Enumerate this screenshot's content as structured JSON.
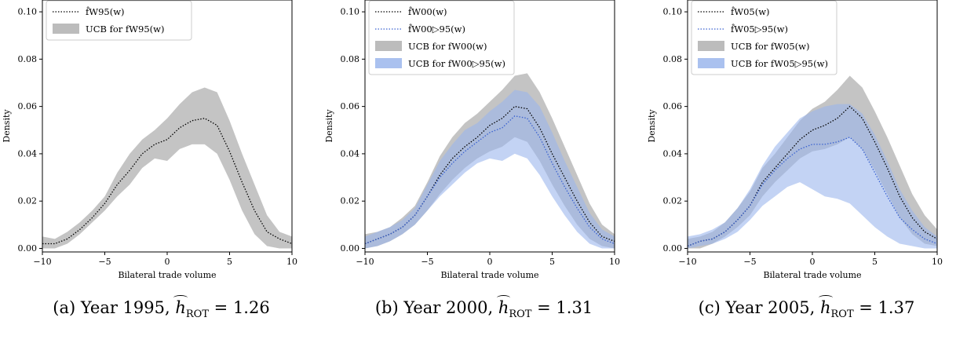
{
  "figure": {
    "panels": [
      {
        "caption": {
          "prefix": "(a) Year 1995, ",
          "h": "h",
          "sub": "ROT",
          "value": " = 1.26"
        },
        "xlabel": "Bilateral trade volume",
        "ylabel": "Density",
        "legend": [
          {
            "label": "f̂W95(w)",
            "kind": "line-black"
          },
          {
            "label": "UCB for fW95(w)",
            "kind": "patch-gray"
          }
        ]
      },
      {
        "caption": {
          "prefix": "(b) Year 2000, ",
          "h": "h",
          "sub": "ROT",
          "value": " = 1.31"
        },
        "xlabel": "Bilateral trade volume",
        "ylabel": "Density",
        "legend": [
          {
            "label": "f̂W00(w)",
            "kind": "line-black"
          },
          {
            "label": "f̂W00▷95(w)",
            "kind": "line-blue"
          },
          {
            "label": "UCB for fW00(w)",
            "kind": "patch-gray"
          },
          {
            "label": "UCB for fW00▷95(w)",
            "kind": "patch-blue"
          }
        ]
      },
      {
        "caption": {
          "prefix": "(c) Year 2005, ",
          "h": "h",
          "sub": "ROT",
          "value": " = 1.37"
        },
        "xlabel": "Bilateral trade volume",
        "ylabel": "Density",
        "legend": [
          {
            "label": "f̂W05(w)",
            "kind": "line-black"
          },
          {
            "label": "f̂W05▷95(w)",
            "kind": "line-blue"
          },
          {
            "label": "UCB for fW05(w)",
            "kind": "patch-gray"
          },
          {
            "label": "UCB for fW05▷95(w)",
            "kind": "patch-blue"
          }
        ]
      }
    ]
  },
  "colors": {
    "gray_band": "#b0b0b0",
    "blue_band": "#9bb6ec",
    "blue_line": "#3a62d0",
    "black_line": "#000000"
  },
  "chart_data": [
    {
      "type": "area",
      "xlabel": "Bilateral trade volume",
      "ylabel": "Density",
      "xlim": [
        -10,
        10
      ],
      "ylim": [
        -0.0015,
        0.105
      ],
      "xticks": [
        -10,
        -5,
        0,
        5,
        10
      ],
      "yticks": [
        0.0,
        0.02,
        0.04,
        0.06,
        0.08,
        0.1
      ],
      "ytick_labels": [
        "0.00",
        "0.02",
        "0.04",
        "0.06",
        "0.08",
        "0.10"
      ],
      "grid": false,
      "legend_position": "upper-left",
      "x": [
        -10,
        -9,
        -8,
        -7,
        -6,
        -5,
        -4,
        -3,
        -2,
        -1,
        0,
        1,
        2,
        3,
        4,
        5,
        6,
        7,
        8,
        9,
        10
      ],
      "series": [
        {
          "label": "f̂W95(w)",
          "kind": "line",
          "color": "#000000",
          "values": [
            0.002,
            0.002,
            0.004,
            0.008,
            0.013,
            0.019,
            0.027,
            0.033,
            0.04,
            0.044,
            0.046,
            0.051,
            0.054,
            0.055,
            0.052,
            0.041,
            0.028,
            0.016,
            0.007,
            0.004,
            0.002
          ]
        }
      ],
      "bands": [
        {
          "label": "UCB for fW95(w)",
          "color": "#b0b0b0",
          "lower": [
            0.0,
            0.0,
            0.002,
            0.006,
            0.011,
            0.016,
            0.022,
            0.027,
            0.034,
            0.038,
            0.037,
            0.042,
            0.044,
            0.044,
            0.04,
            0.029,
            0.016,
            0.006,
            0.001,
            0.0,
            0.0
          ],
          "upper": [
            0.005,
            0.004,
            0.007,
            0.011,
            0.016,
            0.022,
            0.032,
            0.04,
            0.046,
            0.05,
            0.055,
            0.061,
            0.066,
            0.068,
            0.066,
            0.054,
            0.04,
            0.027,
            0.014,
            0.007,
            0.005
          ]
        }
      ]
    },
    {
      "type": "area",
      "xlabel": "Bilateral trade volume",
      "ylabel": "Density",
      "xlim": [
        -10,
        10
      ],
      "ylim": [
        -0.0015,
        0.105
      ],
      "xticks": [
        -10,
        -5,
        0,
        5,
        10
      ],
      "yticks": [
        0.0,
        0.02,
        0.04,
        0.06,
        0.08,
        0.1
      ],
      "ytick_labels": [
        "0.00",
        "0.02",
        "0.04",
        "0.06",
        "0.08",
        "0.10"
      ],
      "grid": false,
      "legend_position": "upper-left",
      "x": [
        -10,
        -9,
        -8,
        -7,
        -6,
        -5,
        -4,
        -3,
        -2,
        -1,
        0,
        1,
        2,
        3,
        4,
        5,
        6,
        7,
        8,
        9,
        10
      ],
      "series": [
        {
          "label": "f̂W00(w)",
          "kind": "line",
          "color": "#000000",
          "values": [
            0.002,
            0.004,
            0.006,
            0.009,
            0.014,
            0.022,
            0.031,
            0.038,
            0.043,
            0.047,
            0.052,
            0.055,
            0.06,
            0.059,
            0.051,
            0.04,
            0.03,
            0.02,
            0.011,
            0.005,
            0.003
          ]
        },
        {
          "label": "f̂W00▷95(w)",
          "kind": "line",
          "color": "#3a62d0",
          "values": [
            0.002,
            0.004,
            0.006,
            0.009,
            0.014,
            0.022,
            0.03,
            0.036,
            0.041,
            0.045,
            0.049,
            0.051,
            0.056,
            0.055,
            0.047,
            0.036,
            0.026,
            0.017,
            0.009,
            0.004,
            0.002
          ]
        }
      ],
      "bands": [
        {
          "label": "UCB for fW00(w)",
          "color": "#b0b0b0",
          "lower": [
            0.0,
            0.001,
            0.003,
            0.006,
            0.01,
            0.016,
            0.023,
            0.029,
            0.034,
            0.038,
            0.041,
            0.043,
            0.047,
            0.045,
            0.037,
            0.027,
            0.018,
            0.01,
            0.004,
            0.001,
            0.0
          ],
          "upper": [
            0.006,
            0.007,
            0.009,
            0.013,
            0.018,
            0.028,
            0.039,
            0.047,
            0.053,
            0.057,
            0.062,
            0.067,
            0.073,
            0.074,
            0.066,
            0.055,
            0.043,
            0.031,
            0.019,
            0.01,
            0.006
          ]
        },
        {
          "label": "UCB for fW00▷95(w)",
          "color": "#9bb6ec",
          "lower": [
            0.0,
            0.001,
            0.003,
            0.006,
            0.01,
            0.016,
            0.022,
            0.027,
            0.032,
            0.036,
            0.038,
            0.037,
            0.04,
            0.038,
            0.031,
            0.022,
            0.014,
            0.007,
            0.002,
            0.0,
            0.0
          ],
          "upper": [
            0.005,
            0.007,
            0.009,
            0.012,
            0.017,
            0.027,
            0.037,
            0.044,
            0.05,
            0.053,
            0.058,
            0.062,
            0.067,
            0.066,
            0.06,
            0.049,
            0.037,
            0.026,
            0.015,
            0.008,
            0.005
          ]
        }
      ]
    },
    {
      "type": "area",
      "xlabel": "Bilateral trade volume",
      "ylabel": "Density",
      "xlim": [
        -10,
        10
      ],
      "ylim": [
        -0.0015,
        0.105
      ],
      "xticks": [
        -10,
        -5,
        0,
        5,
        10
      ],
      "yticks": [
        0.0,
        0.02,
        0.04,
        0.06,
        0.08,
        0.1
      ],
      "ytick_labels": [
        "0.00",
        "0.02",
        "0.04",
        "0.06",
        "0.08",
        "0.10"
      ],
      "grid": false,
      "legend_position": "upper-left",
      "x": [
        -10,
        -9,
        -8,
        -7,
        -6,
        -5,
        -4,
        -3,
        -2,
        -1,
        0,
        1,
        2,
        3,
        4,
        5,
        6,
        7,
        8,
        9,
        10
      ],
      "series": [
        {
          "label": "f̂W05(w)",
          "kind": "line",
          "color": "#000000",
          "values": [
            0.001,
            0.003,
            0.004,
            0.007,
            0.012,
            0.018,
            0.028,
            0.034,
            0.04,
            0.046,
            0.05,
            0.052,
            0.055,
            0.06,
            0.055,
            0.045,
            0.034,
            0.022,
            0.013,
            0.007,
            0.004
          ]
        },
        {
          "label": "f̂W05▷95(w)",
          "kind": "line",
          "color": "#3a62d0",
          "values": [
            0.001,
            0.003,
            0.004,
            0.007,
            0.012,
            0.018,
            0.027,
            0.033,
            0.038,
            0.042,
            0.044,
            0.044,
            0.045,
            0.047,
            0.042,
            0.032,
            0.022,
            0.013,
            0.008,
            0.004,
            0.002
          ]
        }
      ],
      "bands": [
        {
          "label": "UCB for fW05(w)",
          "color": "#b0b0b0",
          "lower": [
            0.0,
            0.0,
            0.002,
            0.005,
            0.009,
            0.014,
            0.022,
            0.028,
            0.033,
            0.038,
            0.041,
            0.042,
            0.044,
            0.047,
            0.042,
            0.033,
            0.023,
            0.013,
            0.006,
            0.002,
            0.001
          ],
          "upper": [
            0.004,
            0.005,
            0.007,
            0.011,
            0.017,
            0.024,
            0.034,
            0.04,
            0.047,
            0.054,
            0.059,
            0.062,
            0.067,
            0.073,
            0.068,
            0.058,
            0.047,
            0.035,
            0.023,
            0.014,
            0.008
          ]
        },
        {
          "label": "UCB for fW05▷95(w)",
          "color": "#9bb6ec",
          "lower": [
            0.0,
            0.001,
            0.002,
            0.004,
            0.007,
            0.012,
            0.018,
            0.022,
            0.026,
            0.028,
            0.025,
            0.022,
            0.021,
            0.019,
            0.014,
            0.009,
            0.005,
            0.002,
            0.001,
            0.0,
            0.0
          ],
          "upper": [
            0.005,
            0.006,
            0.008,
            0.011,
            0.017,
            0.025,
            0.035,
            0.043,
            0.049,
            0.055,
            0.058,
            0.06,
            0.061,
            0.061,
            0.057,
            0.048,
            0.037,
            0.025,
            0.016,
            0.009,
            0.005
          ]
        }
      ]
    }
  ]
}
